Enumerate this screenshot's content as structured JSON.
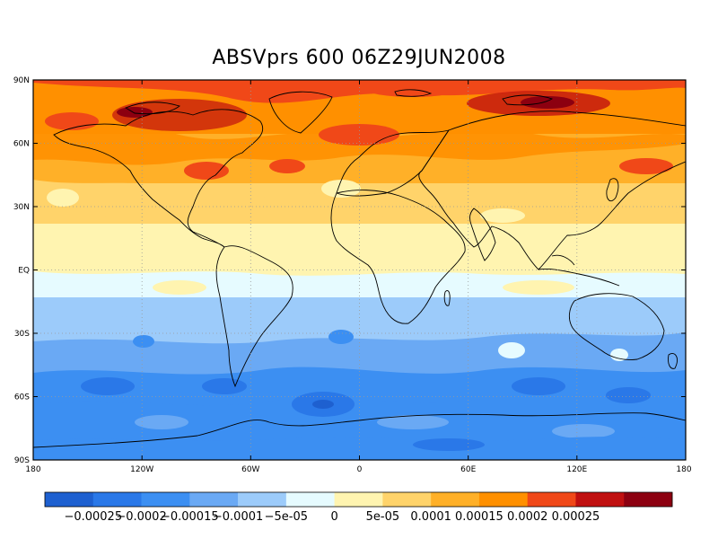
{
  "title": "ABSVprs 600 06Z29JUN2008",
  "y_ticks": [
    "90N",
    "60N",
    "30N",
    "EQ",
    "30S",
    "60S",
    "90S"
  ],
  "x_ticks": [
    "180",
    "120W",
    "60W",
    "0",
    "60E",
    "120E",
    "180"
  ],
  "colorbar": {
    "colors": [
      "#1e60d0",
      "#2a78e8",
      "#3c8ff2",
      "#6aa9f4",
      "#9ccbfa",
      "#e6fbff",
      "#fff4b0",
      "#ffd36a",
      "#ffb028",
      "#ff9000",
      "#f04818",
      "#c01010",
      "#8c0010"
    ],
    "labels": [
      "-0.00025",
      "-0.0002",
      "-0.00015",
      "-0.0001",
      "-5e-05",
      "0",
      "5e-05",
      "0.0001",
      "0.00015",
      "0.0002",
      "0.00025"
    ]
  }
}
